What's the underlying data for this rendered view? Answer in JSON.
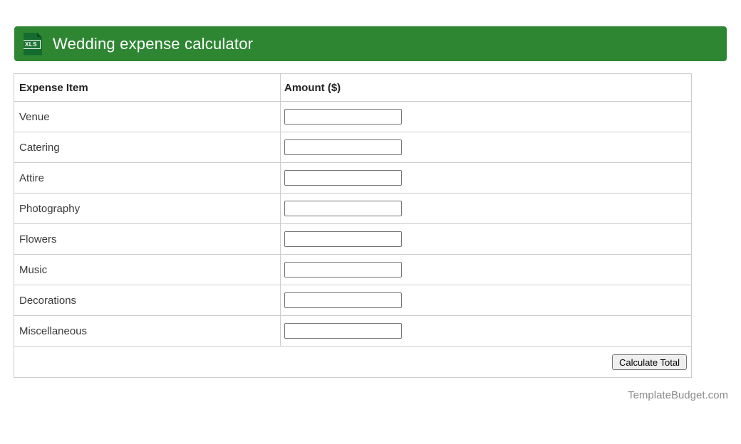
{
  "banner": {
    "title": "Wedding expense calculator",
    "file_icon_label": "XLS",
    "background_color": "#2e8633"
  },
  "table": {
    "headers": [
      "Expense Item",
      "Amount ($)"
    ],
    "rows": [
      {
        "label": "Venue",
        "amount_value": ""
      },
      {
        "label": "Catering",
        "amount_value": ""
      },
      {
        "label": "Attire",
        "amount_value": ""
      },
      {
        "label": "Photography",
        "amount_value": ""
      },
      {
        "label": "Flowers",
        "amount_value": ""
      },
      {
        "label": "Music",
        "amount_value": ""
      },
      {
        "label": "Decorations",
        "amount_value": ""
      },
      {
        "label": "Miscellaneous",
        "amount_value": ""
      }
    ],
    "footer": {
      "calculate_button_label": "Calculate Total"
    }
  },
  "page_footer": {
    "site_name": "TemplateBudget.com"
  }
}
